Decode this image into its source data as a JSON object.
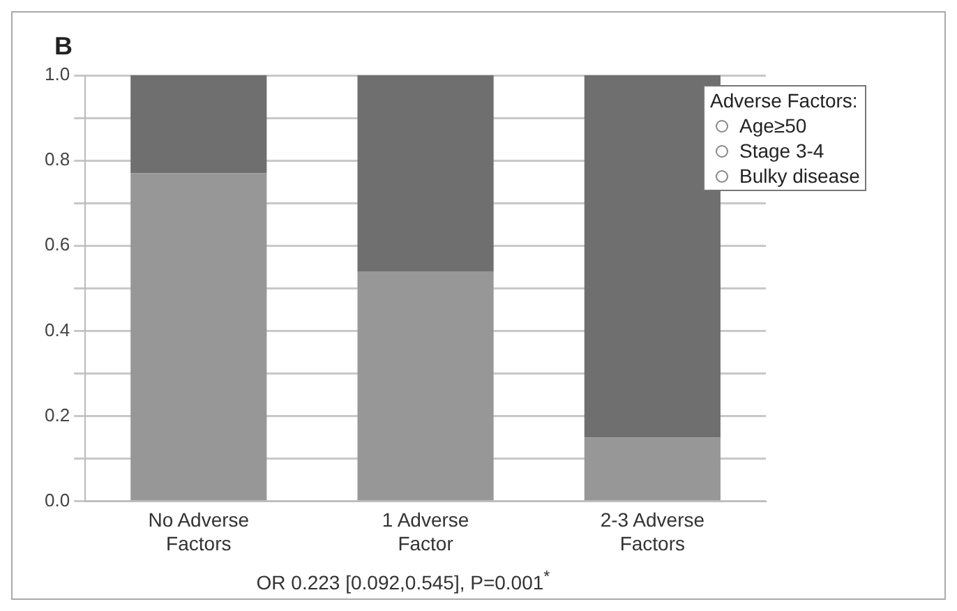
{
  "chart_data": {
    "type": "bar",
    "title": "B",
    "categories": [
      "No Adverse Factors",
      "1 Adverse Factor",
      "2-3 Adverse Factors"
    ],
    "series": [
      {
        "color": "#979797",
        "values": [
          0.77,
          0.54,
          0.15
        ]
      },
      {
        "color": "#6f6f6f",
        "values": [
          0.23,
          0.46,
          0.85
        ]
      }
    ],
    "stacked": true,
    "ylim": [
      0,
      1
    ],
    "yticks": [
      {
        "value": 0,
        "label": "0.0"
      },
      {
        "value": 0.1,
        "label": null
      },
      {
        "value": 0.2,
        "label": "0.2"
      },
      {
        "value": 0.3,
        "label": null
      },
      {
        "value": 0.4,
        "label": "0.4"
      },
      {
        "value": 0.5,
        "label": null
      },
      {
        "value": 0.6,
        "label": "0.6"
      },
      {
        "value": 0.7,
        "label": null
      },
      {
        "value": 0.8,
        "label": "0.8"
      },
      {
        "value": 0.9,
        "label": null
      },
      {
        "value": 1,
        "label": "1.0"
      }
    ],
    "grid": "y",
    "legend": false,
    "annotations": [
      "Adverse Factors:",
      "Age≥50",
      "Stage 3-4",
      "Bulky disease",
      "OR 0.223 [0.092,0.545], P=0.001$^{*}$"
    ]
  }
}
